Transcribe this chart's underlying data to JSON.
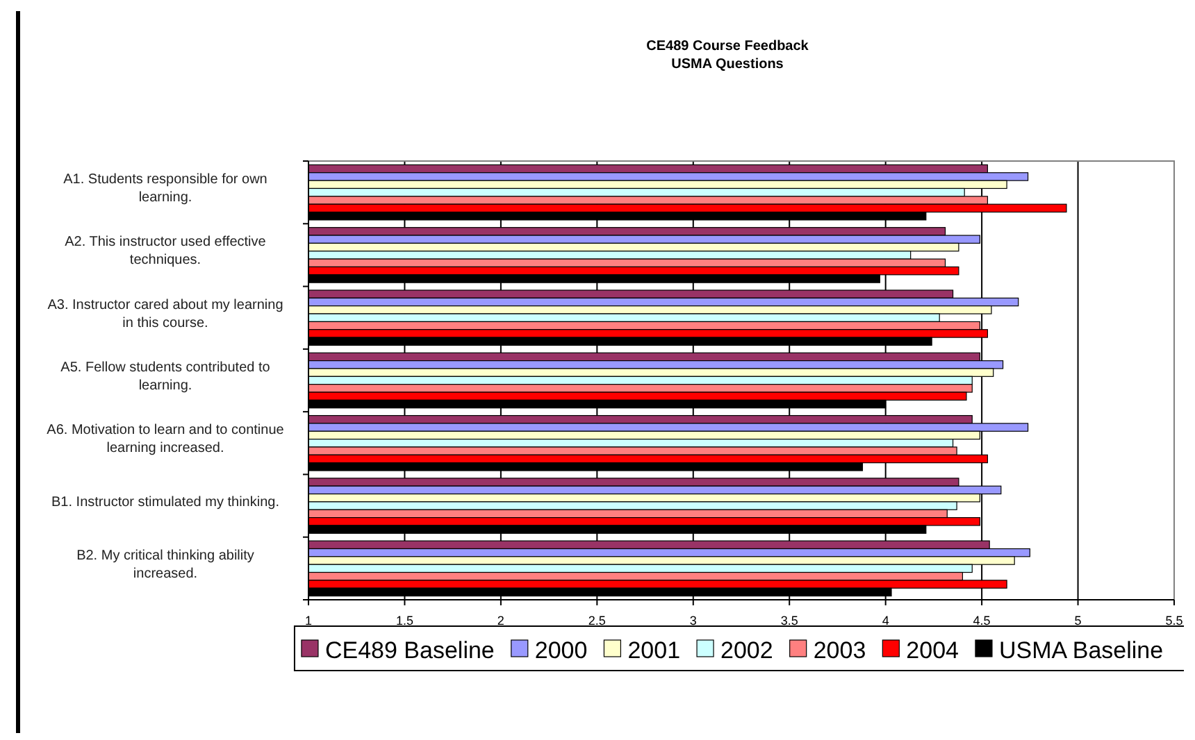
{
  "chart_data": {
    "type": "bar",
    "orientation": "horizontal",
    "title": "CE489 Course Feedback\nUSMA Questions",
    "categories": [
      "A1. Students responsible for own learning.",
      "A2. This instructor used effective techniques.",
      "A3. Instructor cared about my learning in this course.",
      "A5. Fellow students contributed to learning.",
      "A6. Motivation to learn and to continue learning increased.",
      "B1. Instructor stimulated my thinking.",
      "B2. My critical thinking ability increased."
    ],
    "series": [
      {
        "name": "CE489 Baseline",
        "color": "#993366",
        "values": [
          4.53,
          4.31,
          4.35,
          4.49,
          4.45,
          4.38,
          4.54
        ]
      },
      {
        "name": "2000",
        "color": "#9999ff",
        "values": [
          4.74,
          4.49,
          4.69,
          4.61,
          4.74,
          4.6,
          4.75
        ]
      },
      {
        "name": "2001",
        "color": "#ffffcc",
        "values": [
          4.63,
          4.38,
          4.55,
          4.56,
          4.49,
          4.49,
          4.67
        ]
      },
      {
        "name": "2002",
        "color": "#ccffff",
        "values": [
          4.41,
          4.13,
          4.28,
          4.45,
          4.35,
          4.37,
          4.45
        ]
      },
      {
        "name": "2003",
        "color": "#ff8080",
        "values": [
          4.53,
          4.31,
          4.49,
          4.45,
          4.37,
          4.32,
          4.4
        ]
      },
      {
        "name": "2004",
        "color": "#ff0000",
        "values": [
          4.94,
          4.38,
          4.53,
          4.42,
          4.53,
          4.49,
          4.63
        ]
      },
      {
        "name": "USMA Baseline",
        "color": "#000000",
        "values": [
          4.21,
          3.97,
          4.24,
          4.0,
          3.88,
          4.21,
          4.03
        ]
      }
    ],
    "xlim": [
      1,
      5.5
    ],
    "xticks": [
      1,
      1.5,
      2,
      2.5,
      3,
      3.5,
      4,
      4.5,
      5,
      5.5
    ],
    "grid": "x",
    "legend": "bottom"
  }
}
